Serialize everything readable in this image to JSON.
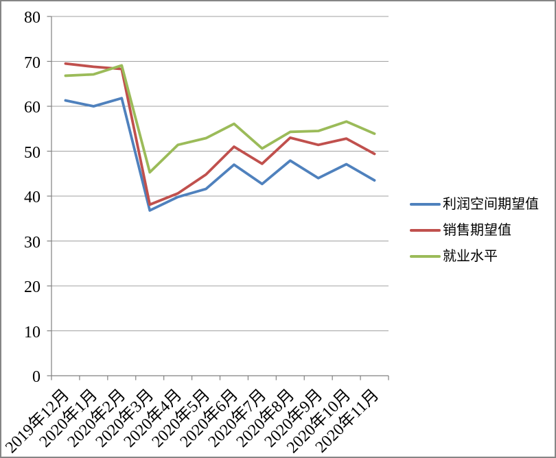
{
  "chart_data": {
    "type": "line",
    "title": "",
    "categories": [
      "2019年12月",
      "2020年1月",
      "2020年2月",
      "2020年3月",
      "2020年4月",
      "2020年5月",
      "2020年6月",
      "2020年7月",
      "2020年8月",
      "2020年9月",
      "2020年10月",
      "2020年11月"
    ],
    "series": [
      {
        "name": "利润空间期望值",
        "color": "#4F81BD",
        "values": [
          61.3,
          60.0,
          61.8,
          36.8,
          39.8,
          41.6,
          47.0,
          42.7,
          47.9,
          44.0,
          47.1,
          43.5
        ]
      },
      {
        "name": "销售期望值",
        "color": "#C0504D",
        "values": [
          69.5,
          68.8,
          68.3,
          38.1,
          40.6,
          44.8,
          51.0,
          47.2,
          53.0,
          51.4,
          52.8,
          49.4
        ]
      },
      {
        "name": "就业水平",
        "color": "#9BBB59",
        "values": [
          66.8,
          67.1,
          69.1,
          45.3,
          51.4,
          52.9,
          56.1,
          50.6,
          54.3,
          54.5,
          56.6,
          53.9
        ]
      }
    ],
    "ylim": [
      0,
      80
    ],
    "yticks": [
      0,
      10,
      20,
      30,
      40,
      50,
      60,
      70,
      80
    ],
    "grid": true,
    "legend_position": "right"
  },
  "colors": {
    "background": "#FFFFFF",
    "border": "#858585",
    "gridline": "#A0A0A0",
    "axis": "#808080",
    "text": "#000000"
  }
}
